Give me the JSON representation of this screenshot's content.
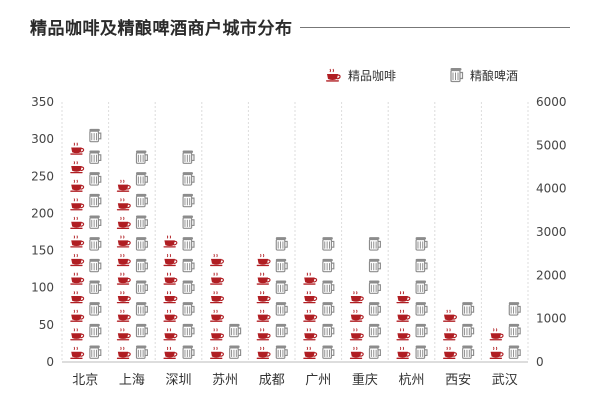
{
  "title": "精品咖啡及精酿啤酒商户城市分布",
  "colors": {
    "coffee": "#b01e23",
    "beer": "#8c8c8c",
    "grid": "#dcdcdc"
  },
  "chart_data": {
    "type": "pictograph",
    "categories": [
      "北京",
      "上海",
      "深圳",
      "苏州",
      "成都",
      "广州",
      "重庆",
      "杭州",
      "西安",
      "武汉"
    ],
    "series": [
      {
        "name": "精品咖啡",
        "axis": "left",
        "icon": "coffee-cup-icon",
        "values": [
          292,
          255,
          165,
          145,
          145,
          125,
          100,
          95,
          65,
          40
        ]
      },
      {
        "name": "精酿啤酒",
        "axis": "right",
        "icon": "beer-mug-icon",
        "values": [
          5300,
          4800,
          4800,
          800,
          2800,
          3200,
          3200,
          2800,
          1500,
          1500
        ]
      }
    ],
    "y_left": {
      "min": 0,
      "max": 350,
      "ticks": [
        0,
        50,
        100,
        150,
        200,
        250,
        300,
        350
      ]
    },
    "y_right": {
      "min": 0,
      "max": 6000,
      "ticks": [
        0,
        1000,
        2000,
        3000,
        4000,
        5000,
        6000
      ]
    },
    "grid": "vertical-dashed",
    "legend_position": "top-right"
  }
}
